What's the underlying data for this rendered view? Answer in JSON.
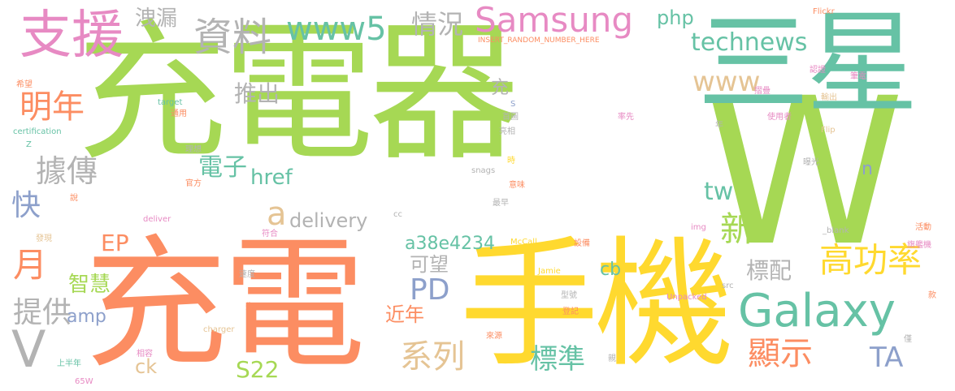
{
  "colors": {
    "green": "#a6d854",
    "orange": "#fc8d62",
    "yellow": "#ffd92f",
    "teal": "#66c2a5",
    "gray": "#b3b3b3",
    "pink": "#e78ac3",
    "tan": "#e5c494",
    "blue": "#8da0cb"
  },
  "words": [
    "充電器",
    "W",
    "充電",
    "手機",
    "三星",
    "Galaxy",
    "支援",
    "資料",
    "Samsung",
    "www5",
    "technews",
    "情況",
    "洩漏",
    "php",
    "Flickr",
    "INSERT_RANDOM_NUMBER_HERE",
    "明年",
    "www",
    "推出",
    "充",
    "據傳",
    "電子",
    "href",
    "快",
    "tw",
    "n",
    "a",
    "delivery",
    "新",
    "高功率",
    "EP",
    "標配",
    "月",
    "PD",
    "可望",
    "a38e4234",
    "智慧",
    "cb",
    "提供",
    "近年",
    "V",
    "amp",
    "系列",
    "標準",
    "顯示",
    "TA",
    "ck",
    "S22",
    "筆電",
    "認證",
    "摺疊",
    "輸出",
    "使用者",
    "率先",
    "首圖",
    "年",
    "Flip",
    "亮相",
    "曝光",
    "意味",
    "snags",
    "時",
    "最早",
    "_blank",
    "img",
    "活動",
    "旗艦機",
    "cc",
    "src",
    "McCall",
    "設備",
    "Unpacked",
    "款",
    "Jamie",
    "型號",
    "登記",
    "來源",
    "僅",
    "親",
    "charger",
    "相容",
    "速度",
    "符合",
    "先",
    "發現",
    "deliver",
    "說",
    "certification",
    "Z",
    "理想",
    "官方",
    "target",
    "通用",
    "希望",
    "S",
    "上半年",
    "65W"
  ]
}
